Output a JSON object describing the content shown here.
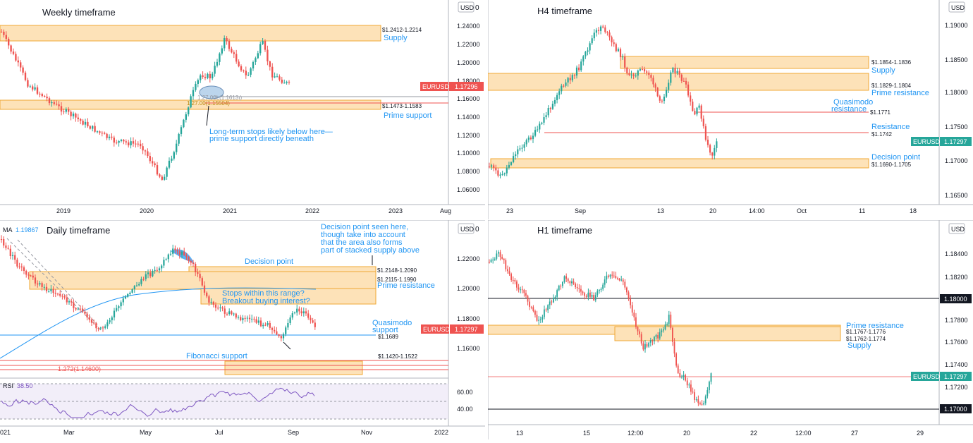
{
  "colors": {
    "up": "#26a69a",
    "down": "#ef5350",
    "zone_fill": "#fde2b8",
    "zone_border": "#f0a836",
    "label_blue": "#2196f3",
    "rsi": "#7e57c2",
    "ma": "#2196f3"
  },
  "currency": "USD",
  "symbol": "EURUSD",
  "weekly": {
    "title": "Weekly timeframe",
    "price_label": "1.17296",
    "yticks": [
      "1.24000",
      "1.22000",
      "1.20000",
      "1.18000",
      "1.16000",
      "1.14000",
      "1.12000",
      "1.10000",
      "1.08000",
      "1.06000"
    ],
    "xticks": [
      "2019",
      "2020",
      "2021",
      "2022",
      "2023",
      "Aug"
    ],
    "supply_range": "$1.2412-1.2214",
    "supply_label": "Supply",
    "support_range": "$1.1473-1.1583",
    "support_label": "Prime support",
    "fib_label": "1.27.00Ł(1.1613ı)",
    "fib_label2": "1.27.00(1.15504)",
    "note": "Long-term stops likely below here—",
    "note2": "prime support directly beneath",
    "tick_zero": "0"
  },
  "h4": {
    "title": "H4 timeframe",
    "price_label": "1.17297",
    "yticks": [
      "1.19000",
      "1.18500",
      "1.18000",
      "1.17500",
      "1.17000",
      "1.16500"
    ],
    "xticks": [
      "23",
      "Sep",
      "13",
      "20",
      "14:00",
      "Oct",
      "11",
      "18"
    ],
    "supply_range": "$1.1854-1.1836",
    "supply_label": "Supply",
    "pr_range": "$1.1829-1.1804",
    "pr_label": "Prime resistance",
    "qm_label": "Quasimodo",
    "qm_label2": "resistance",
    "qm_value": "$1.1771",
    "res_label": "Resistance",
    "res_value": "$1.1742",
    "dp_label": "Decision point",
    "dp_range": "$1.1690-1.1705"
  },
  "daily": {
    "title": "Daily timeframe",
    "ma_label": "MA",
    "ma_value": "1.19867",
    "price_label": "1.17297",
    "yticks": [
      "1.22000",
      "1.20000",
      "1.18000",
      "1.16000"
    ],
    "rsi_ticks": [
      "60.00",
      "40.00"
    ],
    "xticks": [
      "021",
      "Mar",
      "May",
      "Jul",
      "Sep",
      "Nov",
      "2022"
    ],
    "dp_label": "Decision point",
    "dp_range": "$1.2148-1.2090",
    "pr_range": "$1.2115-1.1990",
    "pr_label": "Prime resistance",
    "note1": "Decision point seen here,",
    "note2": "though take into account",
    "note3": "that the area also forms",
    "note4": "part of stacked supply above",
    "stops1": "Stops within this range?",
    "stops2": "Breakout buying interest?",
    "qm_label": "Quasimodo",
    "qm_label2": "support",
    "qm_value": "$1.1689",
    "fib_label": "Fibonacci support",
    "fib_range": "$1.1420-1.1522",
    "fib_ext": "1.272(1.14600)",
    "rsi_label": "RSI",
    "rsi_value": "38.50",
    "tick_zero": "0"
  },
  "h1": {
    "title": "H1 timeframe",
    "price_label": "1.17297",
    "level_high": "1.18000",
    "level_low": "1.17000",
    "yticks": [
      "1.18400",
      "1.18200",
      "1.17800",
      "1.17600",
      "1.17400",
      "1.17200"
    ],
    "xticks": [
      "13",
      "15",
      "12:00",
      "20",
      "22",
      "12:00",
      "27",
      "29"
    ],
    "pr_label": "Prime resistance",
    "pr_range": "$1.1767-1.1776",
    "supply_range": "$1.1762-1.1774",
    "supply_label": "Supply"
  }
}
